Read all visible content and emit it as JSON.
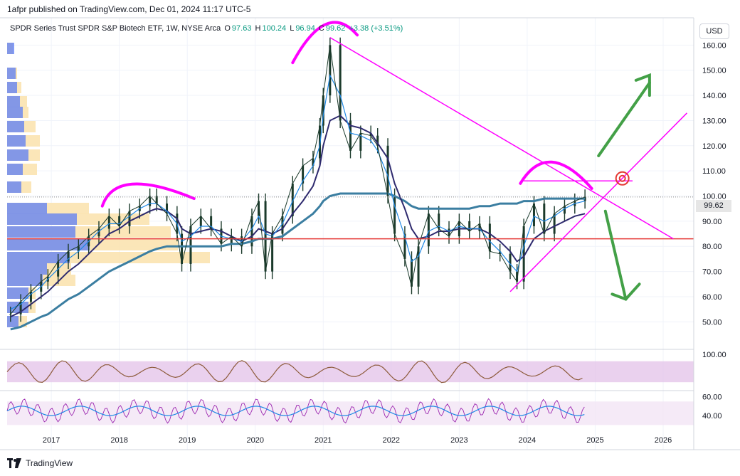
{
  "header": {
    "published": "1afpr published on TradingView.com, Dec 01, 2024 11:17 UTC-5"
  },
  "legend": {
    "symbol": "SPDR Series Trust SPDR S&P Biotech ETF, 1W, NYSE Arca",
    "open_label": "O",
    "open": "97.63",
    "high_label": "H",
    "high": "100.24",
    "low_label": "L",
    "low": "96.94",
    "close_label": "C",
    "close": "99.62",
    "change": "+3.38 (+3.51%)"
  },
  "currency": "USD",
  "last_price": "99.62",
  "footer": {
    "brand": "TradingView"
  },
  "colors": {
    "candle": "#1b3a2b",
    "ma_fast": "#1e88e5",
    "ma_mid": "#2e2a6e",
    "ma_slow": "#3b7ea1",
    "drawing": "#ff00ff",
    "support": "#e53935",
    "arrow": "#43a047",
    "rsi_band": "#e1bee7",
    "target": "#e53935"
  },
  "chart_data": [
    {
      "type": "line",
      "panel": "price",
      "x_tick_labels": [
        "2017",
        "2018",
        "2019",
        "2020",
        "2021",
        "2022",
        "2023",
        "2024",
        "2025",
        "2026"
      ],
      "y_ticks": [
        "50.00",
        "60.00",
        "70.00",
        "80.00",
        "90.00",
        "100.00",
        "110.00",
        "120.00",
        "130.00",
        "140.00",
        "150.00",
        "160.00"
      ],
      "ylim": [
        45,
        170
      ],
      "xlim": [
        2016.4,
        2026.5
      ],
      "price_x": [
        2016.45,
        2016.6,
        2016.75,
        2016.9,
        2017.0,
        2017.15,
        2017.3,
        2017.45,
        2017.6,
        2017.75,
        2017.9,
        2018.05,
        2018.2,
        2018.35,
        2018.5,
        2018.6,
        2018.75,
        2018.9,
        2018.97,
        2019.1,
        2019.25,
        2019.4,
        2019.55,
        2019.7,
        2019.85,
        2020.0,
        2020.1,
        2020.2,
        2020.3,
        2020.45,
        2020.6,
        2020.75,
        2020.9,
        2021.0,
        2021.05,
        2021.15,
        2021.3,
        2021.45,
        2021.6,
        2021.75,
        2021.85,
        2022.0,
        2022.1,
        2022.25,
        2022.35,
        2022.45,
        2022.6,
        2022.75,
        2022.9,
        2023.05,
        2023.2,
        2023.35,
        2023.5,
        2023.65,
        2023.8,
        2023.9,
        2024.0,
        2024.15,
        2024.3,
        2024.45,
        2024.6,
        2024.75,
        2024.9
      ],
      "price_y": [
        53,
        58,
        62,
        66,
        68,
        74,
        78,
        80,
        84,
        87,
        92,
        88,
        94,
        96,
        100,
        97,
        93,
        85,
        73,
        88,
        92,
        87,
        81,
        84,
        80,
        92,
        98,
        70,
        85,
        92,
        105,
        112,
        115,
        128,
        140,
        160,
        130,
        118,
        125,
        124,
        120,
        100,
        85,
        75,
        64,
        80,
        93,
        87,
        84,
        90,
        86,
        89,
        78,
        77,
        70,
        66,
        88,
        97,
        85,
        93,
        96,
        98,
        99.62
      ],
      "ma_fast_y": [
        55,
        57,
        61,
        64,
        67,
        71,
        75,
        78,
        82,
        86,
        89,
        89,
        92,
        95,
        97,
        97,
        94,
        89,
        82,
        84,
        88,
        88,
        84,
        83,
        82,
        87,
        92,
        85,
        84,
        89,
        98,
        106,
        112,
        120,
        132,
        148,
        140,
        125,
        124,
        122,
        118,
        108,
        96,
        84,
        74,
        76,
        86,
        88,
        86,
        88,
        87,
        87,
        82,
        78,
        73,
        70,
        80,
        92,
        90,
        92,
        95,
        97,
        98
      ],
      "ma_mid_y": [
        52,
        54,
        57,
        60,
        62,
        66,
        70,
        73,
        77,
        81,
        85,
        87,
        90,
        92,
        94,
        95,
        94,
        91,
        87,
        85,
        86,
        87,
        86,
        84,
        82,
        84,
        87,
        86,
        85,
        87,
        93,
        98,
        104,
        112,
        120,
        130,
        132,
        128,
        127,
        125,
        121,
        115,
        105,
        95,
        87,
        83,
        84,
        86,
        86,
        87,
        87,
        87,
        85,
        82,
        78,
        74,
        76,
        83,
        86,
        88,
        90,
        92,
        93
      ],
      "ma_slow_y": [
        47,
        48,
        50,
        52,
        53,
        56,
        59,
        61,
        64,
        67,
        70,
        72,
        74,
        76,
        78,
        79,
        80,
        80,
        80,
        80,
        80,
        80,
        80,
        81,
        81,
        82,
        83,
        83,
        83,
        84,
        87,
        90,
        93,
        96,
        98,
        100,
        101,
        101,
        101,
        101,
        101,
        101,
        100,
        98,
        96,
        95,
        95,
        95,
        95,
        95,
        95,
        96,
        96,
        97,
        97,
        97,
        98,
        98,
        99,
        99,
        99,
        99,
        99
      ],
      "annotations": {
        "support_level": 83,
        "resistance_level": 106,
        "last_price": 99.62
      }
    },
    {
      "type": "line",
      "panel": "oscillator-1",
      "y_ticks": [
        "100.00"
      ],
      "ylim": [
        0,
        110
      ],
      "band": [
        20,
        80
      ]
    },
    {
      "type": "line",
      "panel": "oscillator-2",
      "y_ticks": [
        "60.00",
        "40.00"
      ],
      "ylim": [
        25,
        65
      ],
      "band": [
        30,
        55
      ]
    }
  ]
}
